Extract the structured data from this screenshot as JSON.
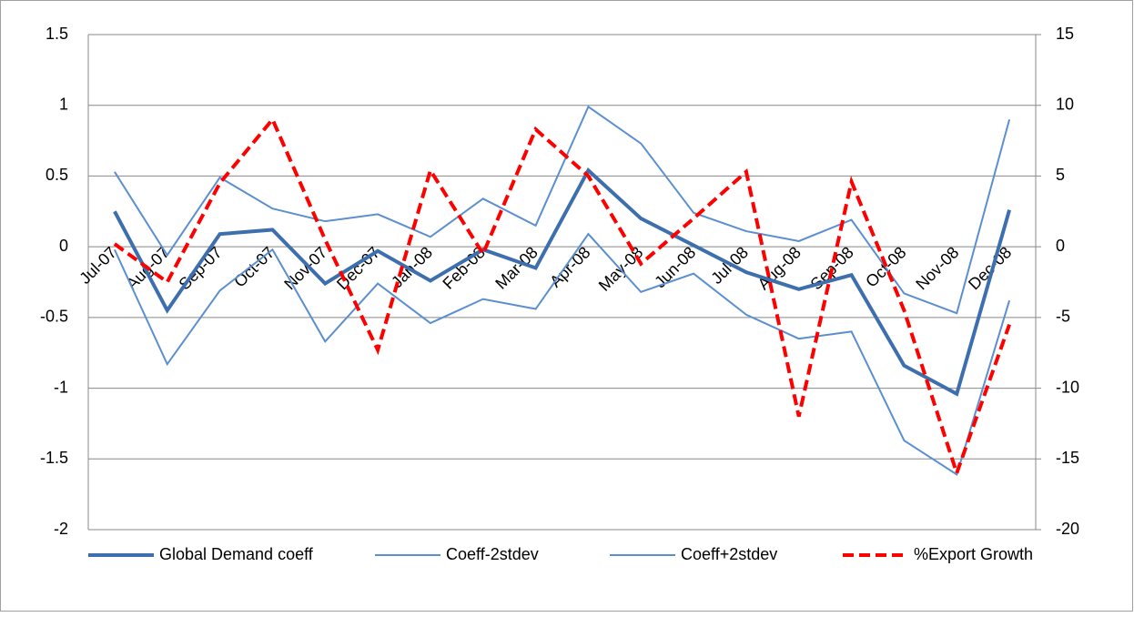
{
  "chart_data": {
    "type": "line",
    "categories": [
      "Jul-07",
      "Aug-07",
      "Sep-07",
      "Oct-07",
      "Nov-07",
      "Dec-07",
      "Jan-08",
      "Feb-08",
      "Mar-08",
      "Apr-08",
      "May-08",
      "Jun-08",
      "Jul-08",
      "Aug-08",
      "Sep-08",
      "Oct-08",
      "Nov-08",
      "Dec-08"
    ],
    "series": [
      {
        "name": "Global Demand coeff",
        "color": "#3d6fae",
        "width": 4,
        "dashed": false,
        "values": [
          0.25,
          -0.45,
          0.09,
          0.12,
          -0.26,
          -0.03,
          -0.24,
          -0.02,
          -0.15,
          0.54,
          0.2,
          0.01,
          -0.18,
          -0.3,
          -0.2,
          -0.84,
          -1.04,
          0.26
        ]
      },
      {
        "name": "Coeff-2stdev",
        "color": "#5b8fd0",
        "width": 2,
        "dashed": false,
        "values": [
          -0.02,
          -0.83,
          -0.31,
          -0.02,
          -0.67,
          -0.26,
          -0.54,
          -0.37,
          -0.44,
          0.09,
          -0.32,
          -0.19,
          -0.48,
          -0.65,
          -0.6,
          -1.37,
          -1.61,
          -0.38
        ]
      },
      {
        "name": "Coeff+2stdev",
        "color": "#5b8fd0",
        "width": 2,
        "dashed": false,
        "values": [
          0.53,
          -0.06,
          0.49,
          0.27,
          0.18,
          0.23,
          0.07,
          0.34,
          0.15,
          0.99,
          0.73,
          0.24,
          0.11,
          0.04,
          0.19,
          -0.33,
          -0.47,
          0.9
        ]
      },
      {
        "name": "%Export Growth",
        "color": "#ff0000",
        "width": 4,
        "dashed": true,
        "axis": "y2",
        "values": [
          0.2,
          -2.5,
          4.5,
          9,
          0.5,
          -7.3,
          5.4,
          -0.5,
          8.3,
          5,
          -1.2,
          2,
          5.3,
          -12,
          4.6,
          -4.5,
          -16,
          -5.5
        ]
      }
    ],
    "ylim": [
      -2,
      1.5
    ],
    "yticks": [
      -2,
      -1.5,
      -1,
      -0.5,
      0,
      0.5,
      1,
      1.5
    ],
    "y2lim": [
      -20,
      15
    ],
    "y2ticks": [
      -20,
      -15,
      -10,
      -5,
      0,
      5,
      10,
      15
    ],
    "grid": true,
    "legend": "bottom"
  }
}
